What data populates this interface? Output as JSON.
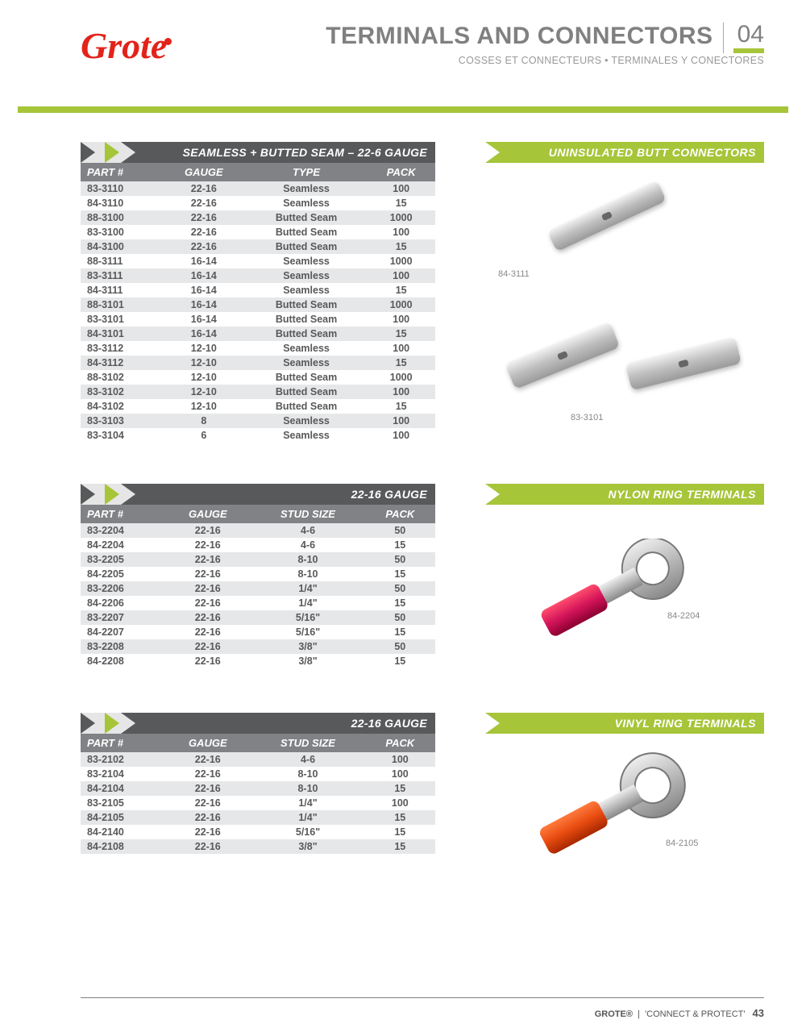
{
  "header": {
    "logo_text": "Grote",
    "title": "TERMINALS AND CONNECTORS",
    "subtitle": "COSSES ET CONNECTEURS • TERMINALES Y CONECTORES",
    "section_num": "04"
  },
  "colors": {
    "brand_red": "#e2231a",
    "accent_green": "#a6c539",
    "dark_gray": "#58595b",
    "mid_gray": "#808285",
    "row_alt": "#e6e7e8"
  },
  "sections": [
    {
      "table_title": "SEAMLESS + BUTTED SEAM – 22-6 GAUGE",
      "right_title": "UNINSULATED BUTT CONNECTORS",
      "columns": [
        "PART #",
        "GAUGE",
        "TYPE",
        "PACK"
      ],
      "rows": [
        [
          "83-3110",
          "22-16",
          "Seamless",
          "100"
        ],
        [
          "84-3110",
          "22-16",
          "Seamless",
          "15"
        ],
        [
          "88-3100",
          "22-16",
          "Butted Seam",
          "1000"
        ],
        [
          "83-3100",
          "22-16",
          "Butted Seam",
          "100"
        ],
        [
          "84-3100",
          "22-16",
          "Butted Seam",
          "15"
        ],
        [
          "88-3111",
          "16-14",
          "Seamless",
          "1000"
        ],
        [
          "83-3111",
          "16-14",
          "Seamless",
          "100"
        ],
        [
          "84-3111",
          "16-14",
          "Seamless",
          "15"
        ],
        [
          "88-3101",
          "16-14",
          "Butted Seam",
          "1000"
        ],
        [
          "83-3101",
          "16-14",
          "Butted Seam",
          "100"
        ],
        [
          "84-3101",
          "16-14",
          "Butted Seam",
          "15"
        ],
        [
          "83-3112",
          "12-10",
          "Seamless",
          "100"
        ],
        [
          "84-3112",
          "12-10",
          "Seamless",
          "15"
        ],
        [
          "88-3102",
          "12-10",
          "Butted Seam",
          "1000"
        ],
        [
          "83-3102",
          "12-10",
          "Butted Seam",
          "100"
        ],
        [
          "84-3102",
          "12-10",
          "Butted Seam",
          "15"
        ],
        [
          "83-3103",
          "8",
          "Seamless",
          "100"
        ],
        [
          "83-3104",
          "6",
          "Seamless",
          "100"
        ]
      ],
      "image_labels": [
        "84-3111",
        "83-3101"
      ]
    },
    {
      "table_title": "22-16 GAUGE",
      "right_title": "NYLON RING TERMINALS",
      "columns": [
        "PART #",
        "GAUGE",
        "STUD SIZE",
        "PACK"
      ],
      "rows": [
        [
          "83-2204",
          "22-16",
          "4-6",
          "50"
        ],
        [
          "84-2204",
          "22-16",
          "4-6",
          "15"
        ],
        [
          "83-2205",
          "22-16",
          "8-10",
          "50"
        ],
        [
          "84-2205",
          "22-16",
          "8-10",
          "15"
        ],
        [
          "83-2206",
          "22-16",
          "1/4\"",
          "50"
        ],
        [
          "84-2206",
          "22-16",
          "1/4\"",
          "15"
        ],
        [
          "83-2207",
          "22-16",
          "5/16\"",
          "50"
        ],
        [
          "84-2207",
          "22-16",
          "5/16\"",
          "15"
        ],
        [
          "83-2208",
          "22-16",
          "3/8\"",
          "50"
        ],
        [
          "84-2208",
          "22-16",
          "3/8\"",
          "15"
        ]
      ],
      "image_labels": [
        "84-2204"
      ]
    },
    {
      "table_title": "22-16 GAUGE",
      "right_title": "VINYL RING TERMINALS",
      "columns": [
        "PART #",
        "GAUGE",
        "STUD SIZE",
        "PACK"
      ],
      "rows": [
        [
          "83-2102",
          "22-16",
          "4-6",
          "100"
        ],
        [
          "83-2104",
          "22-16",
          "8-10",
          "100"
        ],
        [
          "84-2104",
          "22-16",
          "8-10",
          "15"
        ],
        [
          "83-2105",
          "22-16",
          "1/4\"",
          "100"
        ],
        [
          "84-2105",
          "22-16",
          "1/4\"",
          "15"
        ],
        [
          "84-2140",
          "22-16",
          "5/16\"",
          "15"
        ],
        [
          "84-2108",
          "22-16",
          "3/8\"",
          "15"
        ]
      ],
      "image_labels": [
        "84-2105"
      ]
    }
  ],
  "footer": {
    "brand": "GROTE®",
    "tagline": "'CONNECT & PROTECT'",
    "page_num": "43"
  }
}
